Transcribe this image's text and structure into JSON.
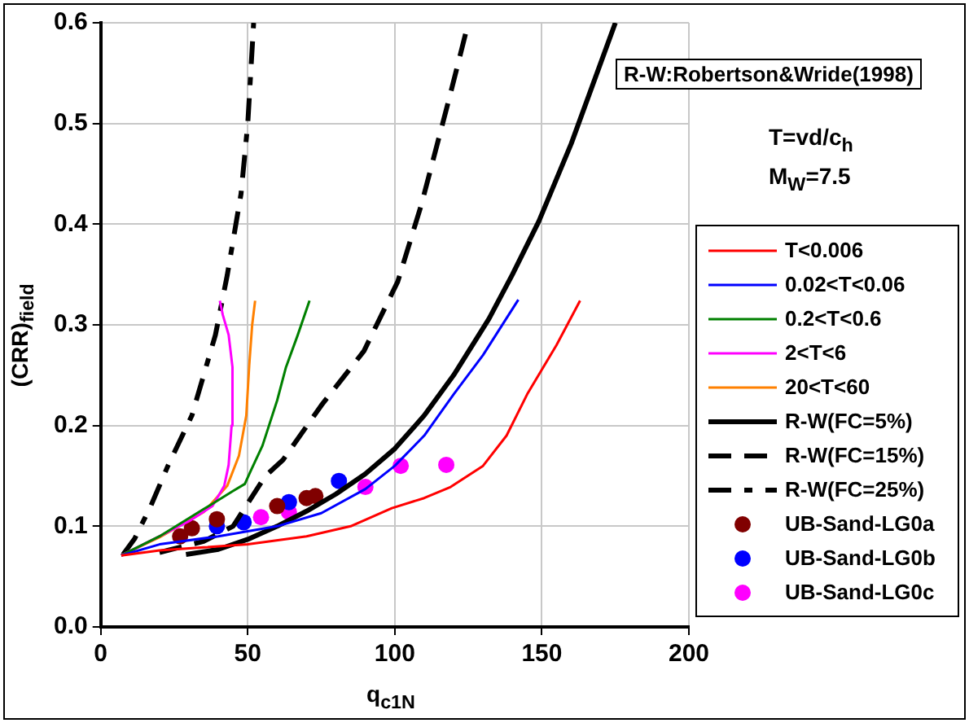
{
  "chart_data": {
    "type": "line",
    "xlabel": "q$_{c1N}$",
    "ylabel": "(CRR)$_{field}$",
    "xlim": [
      0,
      200
    ],
    "xticks": [
      0,
      50,
      100,
      150,
      200
    ],
    "ylim": [
      0,
      0.6
    ],
    "yticks": [
      {
        "value": 0,
        "label": "0.0"
      },
      0.1,
      0.2,
      0.3,
      0.4,
      0.5,
      0.6
    ],
    "grid": true,
    "legend": "right",
    "marker": "none",
    "annotations": [
      "R-W:Robertson&Wride(1998)",
      "T=vd/c$_{h}$",
      "M$_{W}$=7.5"
    ],
    "series": [
      {
        "name": "T<0.006",
        "color": "#ff0000",
        "line_style": "solid",
        "x": [
          7,
          20,
          35,
          50,
          70,
          85,
          99,
          110,
          119,
          130,
          138,
          145,
          155,
          163
        ],
        "values": [
          0.071,
          0.076,
          0.079,
          0.082,
          0.09,
          0.1,
          0.118,
          0.128,
          0.139,
          0.16,
          0.19,
          0.231,
          0.28,
          0.324
        ]
      },
      {
        "name": "0.02<T<0.06",
        "color": "#0000ff",
        "line_style": "solid",
        "x": [
          7,
          20,
          40,
          60,
          75,
          90,
          100,
          110,
          120,
          130,
          142
        ],
        "values": [
          0.071,
          0.082,
          0.09,
          0.1,
          0.113,
          0.137,
          0.16,
          0.19,
          0.231,
          0.27,
          0.325
        ]
      },
      {
        "name": "0.2<T<0.6",
        "color": "#008000",
        "line_style": "solid",
        "x": [
          7,
          20,
          35,
          45,
          49,
          51,
          55,
          60,
          63,
          67,
          71
        ],
        "values": [
          0.071,
          0.09,
          0.117,
          0.135,
          0.142,
          0.155,
          0.18,
          0.225,
          0.258,
          0.29,
          0.324
        ]
      },
      {
        "name": "2<T<6",
        "color": "#ff00ff",
        "line_style": "solid",
        "x": [
          7,
          20,
          30,
          38,
          42,
          43.5,
          44.5,
          44.8,
          43.5,
          41.5,
          40.5
        ],
        "values": [
          0.071,
          0.09,
          0.105,
          0.12,
          0.14,
          0.161,
          0.2,
          0.258,
          0.29,
          0.31,
          0.324
        ]
      },
      {
        "name": "20<T<60",
        "color": "#ff8000",
        "line_style": "solid",
        "x": [
          7,
          20,
          35,
          43,
          47,
          49.5,
          50.5,
          51.5,
          52.5
        ],
        "values": [
          0.071,
          0.089,
          0.114,
          0.14,
          0.17,
          0.21,
          0.26,
          0.3,
          0.324
        ]
      },
      {
        "name": "R-W(FC=5%)",
        "color": "#000000",
        "line_style": "solid",
        "x": [
          29,
          40,
          50,
          60,
          70,
          80,
          90,
          100,
          110,
          120,
          132,
          140,
          149,
          160,
          175
        ],
        "values": [
          0.072,
          0.077,
          0.087,
          0.1,
          0.115,
          0.132,
          0.152,
          0.177,
          0.21,
          0.25,
          0.306,
          0.35,
          0.403,
          0.48,
          0.6
        ]
      },
      {
        "name": "R-W(FC=15%)",
        "color": "#000000",
        "line_style": "dashed",
        "x": [
          20,
          35,
          45,
          56,
          62,
          75,
          89.5,
          101,
          109,
          118.6,
          125
        ],
        "values": [
          0.074,
          0.085,
          0.1,
          0.15,
          0.166,
          0.22,
          0.274,
          0.343,
          0.419,
          0.526,
          0.6
        ]
      },
      {
        "name": "R-W(FC=25%)",
        "color": "#000000",
        "line_style": "dashdot",
        "x": [
          7.6,
          11.6,
          17,
          23,
          31,
          39,
          43,
          47.7,
          50,
          52
        ],
        "values": [
          0.072,
          0.088,
          0.12,
          0.161,
          0.21,
          0.29,
          0.349,
          0.43,
          0.5,
          0.6
        ]
      },
      {
        "name": "UB-Sand-LG0a",
        "type": "scatter",
        "marker": "circle",
        "color": "#800000",
        "x": [
          27,
          31,
          39.5,
          60,
          70,
          73
        ],
        "values": [
          0.09,
          0.098,
          0.107,
          0.12,
          0.128,
          0.13
        ]
      },
      {
        "name": "UB-Sand-LG0b",
        "type": "scatter",
        "marker": "circle",
        "color": "#0000ff",
        "x": [
          39.5,
          48.6,
          64,
          81
        ],
        "values": [
          0.1,
          0.104,
          0.124,
          0.145
        ]
      },
      {
        "name": "UB-Sand-LG0c",
        "type": "scatter",
        "marker": "circle",
        "color": "#ff00ff",
        "x": [
          54.5,
          64,
          90,
          102,
          117.5
        ],
        "values": [
          0.109,
          0.114,
          0.139,
          0.16,
          0.161
        ]
      }
    ]
  }
}
